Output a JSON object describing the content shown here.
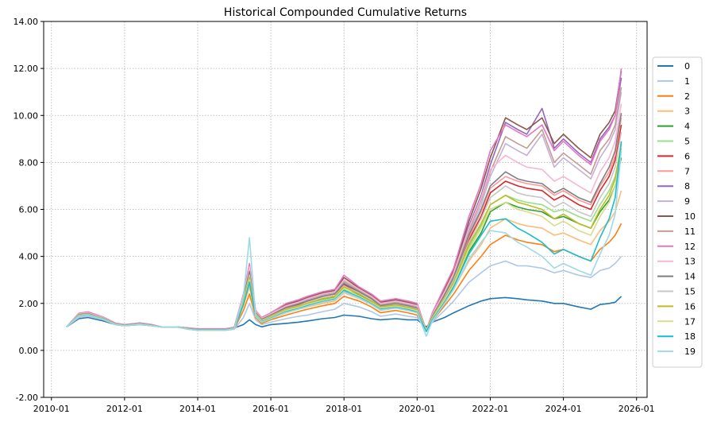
{
  "chart_data": {
    "type": "line",
    "title": "Historical Compounded Cumulative Returns",
    "xlabel": "",
    "ylabel": "",
    "ylim": [
      -2.0,
      14.0
    ],
    "xlim": [
      "2009-10-15",
      "2026-04-15"
    ],
    "grid": true,
    "legend_position": "right",
    "yticks": [
      "-2.00",
      "0.00",
      "2.00",
      "4.00",
      "6.00",
      "8.00",
      "10.00",
      "12.00",
      "14.00"
    ],
    "ytick_values": [
      -2,
      0,
      2,
      4,
      6,
      8,
      10,
      12,
      14
    ],
    "xticks": [
      "2010-01",
      "2012-01",
      "2014-01",
      "2016-01",
      "2018-01",
      "2020-01",
      "2022-01",
      "2024-01",
      "2026-01"
    ],
    "x": [
      "2010-06",
      "2010-10",
      "2011-01",
      "2011-06",
      "2011-10",
      "2012-01",
      "2012-06",
      "2012-10",
      "2013-01",
      "2013-06",
      "2013-10",
      "2014-01",
      "2014-06",
      "2014-10",
      "2015-01",
      "2015-04",
      "2015-06",
      "2015-08",
      "2015-10",
      "2016-01",
      "2016-06",
      "2016-10",
      "2017-01",
      "2017-06",
      "2017-10",
      "2018-01",
      "2018-06",
      "2018-10",
      "2019-01",
      "2019-06",
      "2019-10",
      "2020-01",
      "2020-04",
      "2020-06",
      "2020-10",
      "2021-01",
      "2021-06",
      "2021-10",
      "2022-01",
      "2022-06",
      "2022-10",
      "2023-01",
      "2023-06",
      "2023-10",
      "2024-01",
      "2024-06",
      "2024-10",
      "2025-01",
      "2025-04",
      "2025-06",
      "2025-08"
    ],
    "series": [
      {
        "name": "0",
        "color": "#1f77b4",
        "values": [
          1.0,
          1.35,
          1.4,
          1.25,
          1.1,
          1.05,
          1.1,
          1.05,
          1.0,
          1.0,
          0.95,
          0.9,
          0.9,
          0.9,
          0.95,
          1.1,
          1.3,
          1.1,
          1.0,
          1.1,
          1.15,
          1.2,
          1.25,
          1.35,
          1.4,
          1.5,
          1.45,
          1.35,
          1.3,
          1.35,
          1.3,
          1.3,
          1.0,
          1.2,
          1.4,
          1.6,
          1.9,
          2.1,
          2.2,
          2.25,
          2.2,
          2.15,
          2.1,
          2.0,
          2.0,
          1.85,
          1.75,
          1.95,
          2.0,
          2.05,
          2.3
        ]
      },
      {
        "name": "1",
        "color": "#aec7e8",
        "values": [
          1.0,
          1.4,
          1.45,
          1.3,
          1.1,
          1.05,
          1.1,
          1.05,
          1.0,
          1.0,
          0.9,
          0.85,
          0.85,
          0.85,
          0.9,
          1.4,
          2.0,
          1.3,
          1.1,
          1.2,
          1.35,
          1.45,
          1.5,
          1.65,
          1.75,
          2.0,
          1.85,
          1.65,
          1.45,
          1.55,
          1.45,
          1.4,
          0.9,
          1.2,
          1.7,
          2.1,
          2.9,
          3.3,
          3.6,
          3.8,
          3.6,
          3.6,
          3.5,
          3.3,
          3.4,
          3.2,
          3.1,
          3.4,
          3.5,
          3.7,
          4.0
        ]
      },
      {
        "name": "2",
        "color": "#ff7f0e",
        "values": [
          1.0,
          1.45,
          1.5,
          1.32,
          1.1,
          1.05,
          1.12,
          1.05,
          1.0,
          1.0,
          0.9,
          0.86,
          0.86,
          0.86,
          0.92,
          1.7,
          2.4,
          1.4,
          1.15,
          1.3,
          1.5,
          1.65,
          1.75,
          1.9,
          2.0,
          2.3,
          2.1,
          1.85,
          1.6,
          1.7,
          1.6,
          1.5,
          0.85,
          1.25,
          1.9,
          2.4,
          3.4,
          4.0,
          4.5,
          4.9,
          4.7,
          4.6,
          4.5,
          4.2,
          4.3,
          4.0,
          3.8,
          4.3,
          4.6,
          4.9,
          5.4
        ]
      },
      {
        "name": "3",
        "color": "#ffbb78",
        "values": [
          1.0,
          1.47,
          1.52,
          1.34,
          1.1,
          1.05,
          1.12,
          1.05,
          1.0,
          1.0,
          0.9,
          0.86,
          0.86,
          0.86,
          0.92,
          1.9,
          2.7,
          1.45,
          1.2,
          1.35,
          1.6,
          1.75,
          1.85,
          2.0,
          2.1,
          2.45,
          2.2,
          1.95,
          1.7,
          1.8,
          1.7,
          1.6,
          0.85,
          1.3,
          2.0,
          2.6,
          3.8,
          4.5,
          5.2,
          5.6,
          5.4,
          5.3,
          5.2,
          4.9,
          5.0,
          4.7,
          4.5,
          5.1,
          5.5,
          5.9,
          6.8
        ]
      },
      {
        "name": "4",
        "color": "#2ca02c",
        "values": [
          1.0,
          1.5,
          1.55,
          1.36,
          1.12,
          1.06,
          1.13,
          1.06,
          1.0,
          1.0,
          0.92,
          0.88,
          0.88,
          0.88,
          0.95,
          2.0,
          2.9,
          1.5,
          1.25,
          1.4,
          1.7,
          1.85,
          1.95,
          2.15,
          2.25,
          2.6,
          2.35,
          2.05,
          1.8,
          1.9,
          1.8,
          1.7,
          0.85,
          1.35,
          2.1,
          2.8,
          4.2,
          5.0,
          5.9,
          6.3,
          6.1,
          6.0,
          5.9,
          5.6,
          5.7,
          5.4,
          5.2,
          5.9,
          6.4,
          7.0,
          8.2
        ]
      },
      {
        "name": "5",
        "color": "#98df8a",
        "values": [
          1.0,
          1.5,
          1.56,
          1.37,
          1.12,
          1.06,
          1.13,
          1.06,
          1.0,
          1.0,
          0.92,
          0.88,
          0.88,
          0.88,
          0.95,
          2.1,
          3.0,
          1.55,
          1.28,
          1.45,
          1.75,
          1.9,
          2.0,
          2.2,
          2.3,
          2.7,
          2.4,
          2.1,
          1.85,
          1.95,
          1.85,
          1.75,
          0.85,
          1.4,
          2.2,
          2.9,
          4.4,
          5.3,
          6.2,
          6.6,
          6.4,
          6.3,
          6.2,
          5.9,
          6.0,
          5.7,
          5.5,
          6.2,
          6.8,
          7.4,
          8.6
        ]
      },
      {
        "name": "6",
        "color": "#d62728",
        "values": [
          1.0,
          1.52,
          1.58,
          1.38,
          1.13,
          1.07,
          1.14,
          1.07,
          1.0,
          1.0,
          0.93,
          0.89,
          0.89,
          0.89,
          0.96,
          2.2,
          3.2,
          1.6,
          1.3,
          1.5,
          1.8,
          1.95,
          2.1,
          2.3,
          2.4,
          2.8,
          2.5,
          2.2,
          1.9,
          2.0,
          1.9,
          1.8,
          0.85,
          1.45,
          2.3,
          3.0,
          4.7,
          5.7,
          6.7,
          7.2,
          7.0,
          6.9,
          6.8,
          6.4,
          6.6,
          6.2,
          6.0,
          6.8,
          7.4,
          8.1,
          9.6
        ]
      },
      {
        "name": "7",
        "color": "#ff9896",
        "values": [
          1.0,
          1.52,
          1.58,
          1.38,
          1.13,
          1.07,
          1.14,
          1.07,
          1.0,
          1.0,
          0.93,
          0.89,
          0.89,
          0.89,
          0.96,
          2.25,
          3.3,
          1.62,
          1.32,
          1.52,
          1.82,
          1.98,
          2.12,
          2.32,
          2.42,
          2.85,
          2.52,
          2.22,
          1.92,
          2.02,
          1.92,
          1.82,
          0.85,
          1.45,
          2.35,
          3.1,
          4.8,
          5.9,
          6.9,
          7.4,
          7.2,
          7.1,
          7.0,
          6.6,
          6.8,
          6.4,
          6.2,
          7.0,
          7.6,
          8.3,
          9.9
        ]
      },
      {
        "name": "8",
        "color": "#9467bd",
        "values": [
          1.0,
          1.55,
          1.6,
          1.4,
          1.14,
          1.08,
          1.15,
          1.08,
          1.0,
          1.0,
          0.94,
          0.9,
          0.9,
          0.9,
          0.97,
          2.3,
          3.5,
          1.65,
          1.35,
          1.55,
          1.9,
          2.05,
          2.2,
          2.4,
          2.5,
          3.0,
          2.6,
          2.3,
          2.0,
          2.1,
          2.0,
          1.9,
          0.85,
          1.5,
          2.5,
          3.3,
          5.3,
          6.6,
          7.9,
          9.7,
          9.4,
          9.2,
          10.3,
          8.6,
          9.0,
          8.4,
          8.0,
          9.0,
          9.5,
          10.0,
          11.6
        ]
      },
      {
        "name": "9",
        "color": "#c5b0d5",
        "values": [
          1.0,
          1.53,
          1.58,
          1.38,
          1.13,
          1.07,
          1.14,
          1.07,
          1.0,
          1.0,
          0.93,
          0.89,
          0.89,
          0.89,
          0.96,
          2.28,
          3.4,
          1.62,
          1.33,
          1.52,
          1.85,
          2.0,
          2.15,
          2.35,
          2.45,
          2.9,
          2.55,
          2.25,
          1.95,
          2.05,
          1.95,
          1.85,
          0.85,
          1.48,
          2.4,
          3.2,
          5.0,
          6.2,
          7.4,
          8.8,
          8.5,
          8.3,
          9.2,
          7.8,
          8.2,
          7.7,
          7.3,
          8.2,
          8.8,
          9.4,
          11.0
        ]
      },
      {
        "name": "10",
        "color": "#8c564b",
        "values": [
          1.0,
          1.56,
          1.62,
          1.41,
          1.15,
          1.09,
          1.16,
          1.09,
          1.0,
          1.0,
          0.95,
          0.91,
          0.91,
          0.91,
          0.98,
          2.35,
          3.6,
          1.68,
          1.38,
          1.58,
          1.95,
          2.1,
          2.25,
          2.45,
          2.55,
          3.1,
          2.65,
          2.35,
          2.05,
          2.15,
          2.05,
          1.95,
          0.85,
          1.55,
          2.6,
          3.4,
          5.5,
          6.9,
          8.2,
          9.9,
          9.6,
          9.4,
          9.9,
          8.8,
          9.2,
          8.6,
          8.2,
          9.2,
          9.7,
          10.2,
          11.9
        ]
      },
      {
        "name": "11",
        "color": "#c49c94",
        "values": [
          1.0,
          1.54,
          1.6,
          1.39,
          1.14,
          1.08,
          1.15,
          1.08,
          1.0,
          1.0,
          0.94,
          0.9,
          0.9,
          0.9,
          0.97,
          2.3,
          3.5,
          1.64,
          1.35,
          1.55,
          1.88,
          2.03,
          2.18,
          2.38,
          2.48,
          2.95,
          2.58,
          2.28,
          1.98,
          2.08,
          1.98,
          1.88,
          0.85,
          1.5,
          2.45,
          3.25,
          5.1,
          6.4,
          7.6,
          9.1,
          8.8,
          8.6,
          9.4,
          8.0,
          8.4,
          7.9,
          7.5,
          8.5,
          9.0,
          9.6,
          11.2
        ]
      },
      {
        "name": "12",
        "color": "#e377c2",
        "values": [
          1.0,
          1.58,
          1.64,
          1.42,
          1.16,
          1.1,
          1.17,
          1.1,
          1.0,
          1.0,
          0.96,
          0.92,
          0.92,
          0.92,
          0.99,
          2.4,
          3.7,
          1.7,
          1.4,
          1.6,
          2.0,
          2.15,
          2.3,
          2.5,
          2.6,
          3.2,
          2.7,
          2.4,
          2.1,
          2.2,
          2.1,
          2.0,
          0.85,
          1.6,
          2.7,
          3.5,
          5.7,
          7.1,
          8.5,
          9.6,
          9.3,
          9.1,
          9.6,
          8.5,
          8.9,
          8.3,
          7.9,
          8.9,
          9.4,
          10.0,
          12.0
        ]
      },
      {
        "name": "13",
        "color": "#f7b6d2",
        "values": [
          1.0,
          1.55,
          1.6,
          1.4,
          1.14,
          1.08,
          1.15,
          1.08,
          1.0,
          1.0,
          0.94,
          0.9,
          0.9,
          0.9,
          0.97,
          2.32,
          3.55,
          1.66,
          1.36,
          1.56,
          1.9,
          2.05,
          2.2,
          2.4,
          2.5,
          3.0,
          2.6,
          2.3,
          2.0,
          2.1,
          2.0,
          1.9,
          0.85,
          1.52,
          2.5,
          3.3,
          5.2,
          6.5,
          7.7,
          8.3,
          8.0,
          7.8,
          7.7,
          7.2,
          7.4,
          7.0,
          6.7,
          7.6,
          8.2,
          8.9,
          10.5
        ]
      },
      {
        "name": "14",
        "color": "#7f7f7f",
        "values": [
          1.0,
          1.52,
          1.57,
          1.37,
          1.13,
          1.07,
          1.14,
          1.07,
          1.0,
          1.0,
          0.93,
          0.89,
          0.89,
          0.89,
          0.96,
          2.25,
          3.35,
          1.6,
          1.32,
          1.5,
          1.82,
          1.97,
          2.1,
          2.3,
          2.4,
          2.85,
          2.5,
          2.2,
          1.9,
          2.0,
          1.9,
          1.8,
          0.85,
          1.45,
          2.35,
          3.1,
          4.9,
          6.0,
          7.0,
          7.6,
          7.3,
          7.2,
          7.1,
          6.7,
          6.9,
          6.5,
          6.3,
          7.1,
          7.8,
          8.5,
          10.1
        ]
      },
      {
        "name": "15",
        "color": "#c7c7c7",
        "values": [
          1.0,
          1.5,
          1.55,
          1.36,
          1.12,
          1.06,
          1.13,
          1.06,
          1.0,
          1.0,
          0.92,
          0.88,
          0.88,
          0.88,
          0.95,
          2.15,
          3.2,
          1.56,
          1.28,
          1.46,
          1.76,
          1.9,
          2.03,
          2.23,
          2.33,
          2.75,
          2.42,
          2.12,
          1.85,
          1.95,
          1.85,
          1.75,
          0.85,
          1.4,
          2.25,
          3.0,
          4.6,
          5.6,
          6.5,
          7.0,
          6.7,
          6.6,
          6.5,
          6.1,
          6.3,
          5.9,
          5.7,
          6.5,
          7.1,
          7.8,
          9.3
        ]
      },
      {
        "name": "16",
        "color": "#bcbd22",
        "values": [
          1.0,
          1.5,
          1.54,
          1.35,
          1.12,
          1.06,
          1.12,
          1.06,
          1.0,
          1.0,
          0.92,
          0.88,
          0.88,
          0.88,
          0.95,
          2.1,
          3.1,
          1.54,
          1.27,
          1.44,
          1.74,
          1.88,
          2.0,
          2.2,
          2.3,
          2.7,
          2.4,
          2.1,
          1.85,
          1.93,
          1.83,
          1.73,
          0.85,
          1.4,
          2.2,
          2.9,
          4.5,
          5.4,
          6.2,
          6.6,
          6.3,
          6.2,
          6.0,
          5.6,
          5.8,
          5.4,
          5.2,
          6.0,
          6.6,
          7.3,
          8.8
        ]
      },
      {
        "name": "17",
        "color": "#dbdb8d",
        "values": [
          1.0,
          1.48,
          1.53,
          1.34,
          1.11,
          1.05,
          1.12,
          1.05,
          1.0,
          1.0,
          0.91,
          0.87,
          0.87,
          0.87,
          0.94,
          2.0,
          3.0,
          1.5,
          1.25,
          1.4,
          1.7,
          1.83,
          1.95,
          2.13,
          2.23,
          2.62,
          2.32,
          2.03,
          1.8,
          1.88,
          1.78,
          1.68,
          0.85,
          1.35,
          2.15,
          2.8,
          4.3,
          5.2,
          6.0,
          6.3,
          6.0,
          5.9,
          5.7,
          5.3,
          5.5,
          5.1,
          4.9,
          5.7,
          6.3,
          7.0,
          8.5
        ]
      },
      {
        "name": "18",
        "color": "#17becf",
        "values": [
          1.0,
          1.46,
          1.51,
          1.33,
          1.1,
          1.05,
          1.11,
          1.05,
          1.0,
          1.0,
          0.91,
          0.87,
          0.87,
          0.87,
          0.93,
          1.95,
          2.9,
          1.47,
          1.22,
          1.37,
          1.65,
          1.78,
          1.9,
          2.08,
          2.18,
          2.55,
          2.27,
          1.98,
          1.75,
          1.83,
          1.73,
          1.63,
          0.8,
          1.3,
          2.05,
          2.7,
          4.1,
          4.9,
          5.5,
          5.6,
          5.2,
          5.0,
          4.6,
          4.1,
          4.3,
          4.0,
          3.8,
          4.8,
          5.6,
          6.5,
          8.9
        ]
      },
      {
        "name": "19",
        "color": "#9edae5",
        "values": [
          1.0,
          1.45,
          1.5,
          1.32,
          1.1,
          1.05,
          1.11,
          1.05,
          1.0,
          1.0,
          0.9,
          0.86,
          0.86,
          0.86,
          0.92,
          2.3,
          4.8,
          1.45,
          1.2,
          1.35,
          1.62,
          1.75,
          1.87,
          2.05,
          2.15,
          2.5,
          2.23,
          1.95,
          1.72,
          1.8,
          1.7,
          1.6,
          0.6,
          1.25,
          2.0,
          2.6,
          3.9,
          4.6,
          5.1,
          5.0,
          4.6,
          4.4,
          4.0,
          3.5,
          3.7,
          3.4,
          3.2,
          4.1,
          4.9,
          5.8,
          8.5
        ]
      }
    ]
  }
}
